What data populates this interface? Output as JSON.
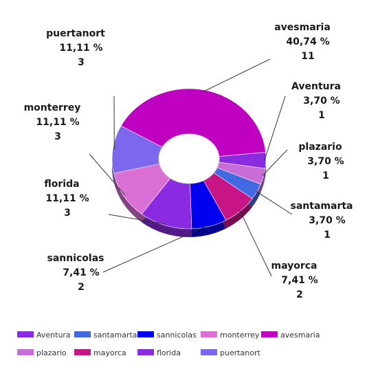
{
  "chart_data": {
    "type": "pie",
    "title": "",
    "slices": [
      {
        "label": "avesmaria",
        "percent": "40,74 %",
        "count": 11,
        "color": "#c000c0"
      },
      {
        "label": "Aventura",
        "percent": "3,70 %",
        "count": 1,
        "color": "#8a2be2"
      },
      {
        "label": "plazario",
        "percent": "3,70 %",
        "count": 1,
        "color": "#c86cd8"
      },
      {
        "label": "santamarta",
        "percent": "3,70 %",
        "count": 1,
        "color": "#4169e1"
      },
      {
        "label": "mayorca",
        "percent": "7,41 %",
        "count": 2,
        "color": "#c71585"
      },
      {
        "label": "sannicolas",
        "percent": "7,41 %",
        "count": 2,
        "color": "#0000ee"
      },
      {
        "label": "florida",
        "percent": "11,11 %",
        "count": 3,
        "color": "#8a2be2"
      },
      {
        "label": "monterrey",
        "percent": "11,11 %",
        "count": 3,
        "color": "#da70d6"
      },
      {
        "label": "puertanort",
        "percent": "11,11 %",
        "count": 3,
        "color": "#7b68ee"
      }
    ],
    "legend": {
      "placement": "bottom",
      "items": [
        "Aventura",
        "santamarta",
        "sannicolas",
        "monterrey",
        "avesmaria",
        "plazario",
        "mayorca",
        "florida",
        "puertanort"
      ]
    }
  }
}
